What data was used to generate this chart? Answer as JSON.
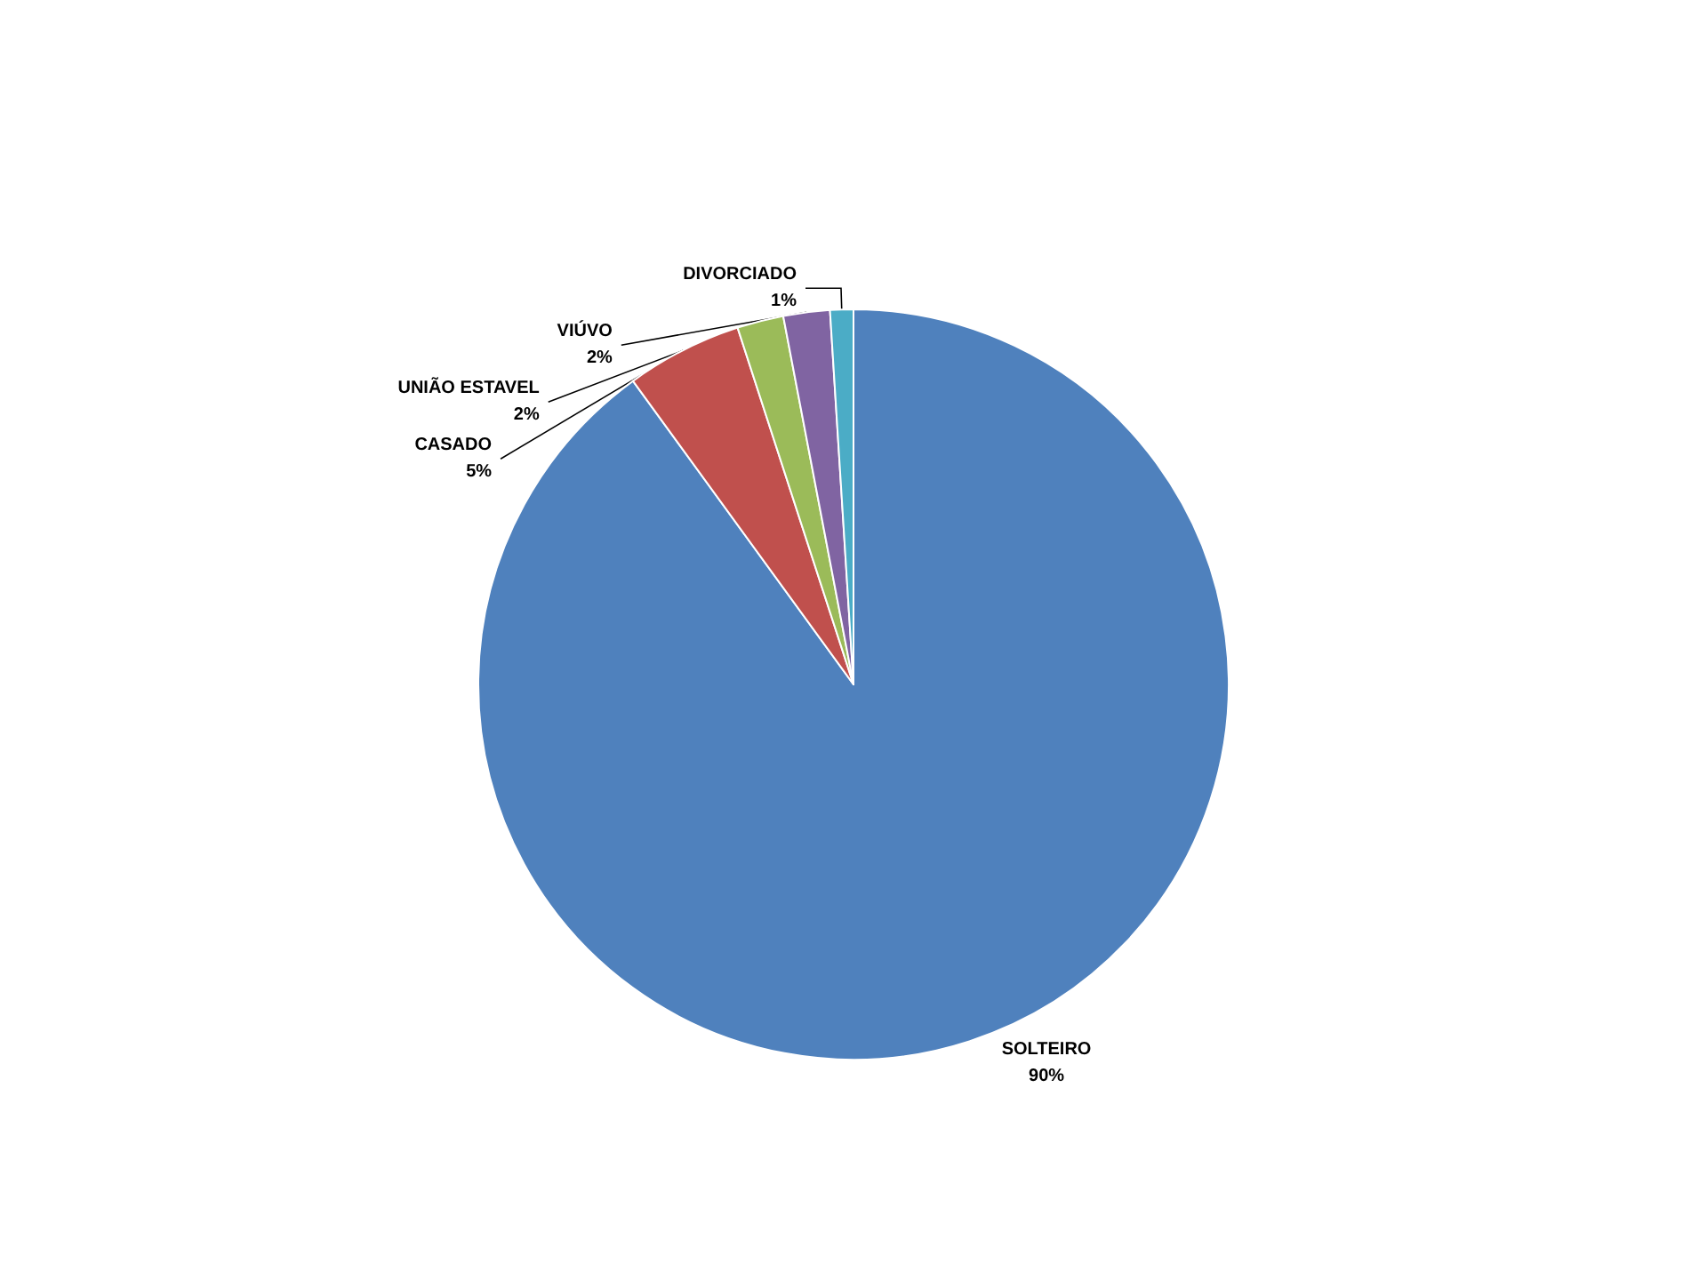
{
  "chart_data": {
    "type": "pie",
    "categories": [
      "SOLTEIRO",
      "CASADO",
      "UNIÃO ESTAVEL",
      "VIÚVO",
      "DIVORCIADO"
    ],
    "values": [
      90,
      5,
      2,
      2,
      1
    ],
    "colors": [
      "#4f81bd",
      "#c0504d",
      "#9bbb59",
      "#8064a2",
      "#4bacc6"
    ],
    "value_labels": [
      "90%",
      "5%",
      "2%",
      "2%",
      "1%"
    ],
    "legend": false
  }
}
